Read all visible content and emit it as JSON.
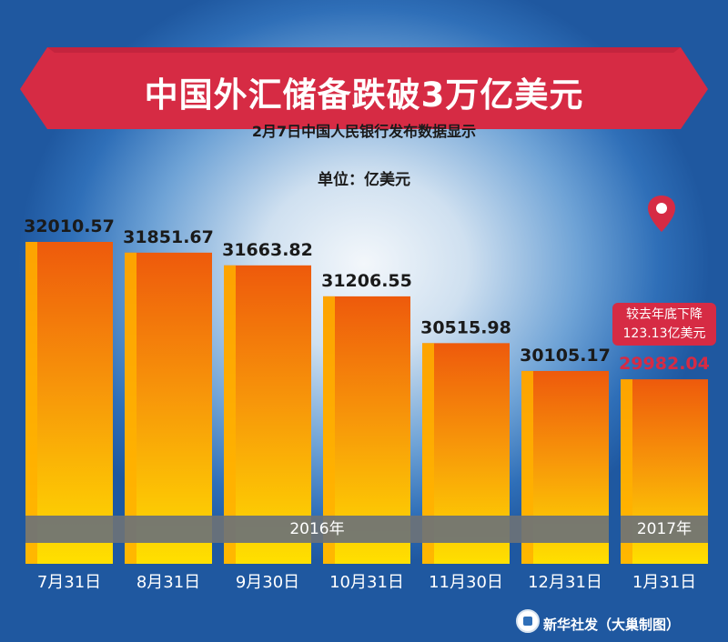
{
  "header": {
    "title": "中国外汇储备跌破3万亿美元",
    "subtitle": "2月7日中国人民银行发布数据显示",
    "unit": "单位：亿美元"
  },
  "chart_data": {
    "type": "bar",
    "categories": [
      "7月31日",
      "8月31日",
      "9月30日",
      "10月31日",
      "11月30日",
      "12月31日",
      "1月31日"
    ],
    "values": [
      32010.57,
      31851.67,
      31663.82,
      31206.55,
      30515.98,
      30105.17,
      29982.04
    ],
    "value_labels": [
      "32010.57",
      "31851.67",
      "31663.82",
      "31206.55",
      "30515.98",
      "30105.17",
      "29982.04"
    ],
    "year_groups": [
      {
        "label": "2016年",
        "from": 0,
        "to": 5
      },
      {
        "label": "2017年",
        "from": 6,
        "to": 6
      }
    ],
    "highlight_index": 6,
    "annotation": {
      "line1": "较去年底下降",
      "line2": "123.13亿美元"
    },
    "colors": {
      "bar_top": "#ee5a0c",
      "bar_bottom": "#ffd800",
      "bar_stripe": "#ffb000",
      "highlight_value": "#d62b44",
      "value_text": "#1a1a1a",
      "banner": "#d62b44",
      "year_band": "#6d7277",
      "category_text": "#ffffff"
    }
  },
  "footer": {
    "credit": "新华社发（大巢制图）",
    "logo": "xinhua-logo-icon"
  }
}
